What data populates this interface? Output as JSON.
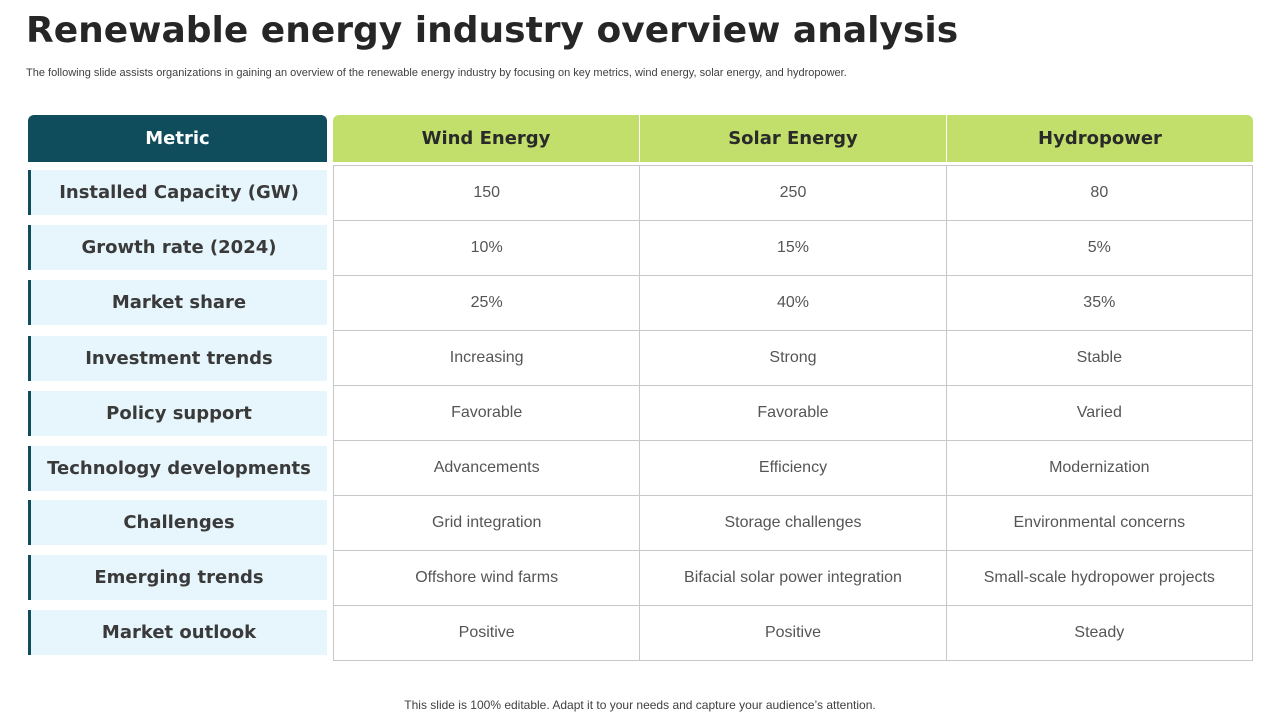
{
  "title": "Renewable energy industry overview analysis",
  "subtitle": "The following slide assists organizations in gaining an overview of the renewable energy industry by focusing on key metrics, wind energy, solar energy, and hydropower.",
  "table": {
    "metric_header": "Metric",
    "columns": [
      "Wind Energy",
      "Solar Energy",
      "Hydropower"
    ],
    "rows": [
      {
        "metric": "Installed Capacity (GW)",
        "values": [
          "150",
          "250",
          "80"
        ]
      },
      {
        "metric": "Growth rate (2024)",
        "values": [
          "10%",
          "15%",
          "5%"
        ]
      },
      {
        "metric": "Market share",
        "values": [
          "25%",
          "40%",
          "35%"
        ]
      },
      {
        "metric": "Investment trends",
        "values": [
          "Increasing",
          "Strong",
          "Stable"
        ]
      },
      {
        "metric": "Policy support",
        "values": [
          "Favorable",
          "Favorable",
          "Varied"
        ]
      },
      {
        "metric": "Technology developments",
        "values": [
          "Advancements",
          "Efficiency",
          "Modernization"
        ]
      },
      {
        "metric": "Challenges",
        "values": [
          "Grid integration",
          "Storage challenges",
          "Environmental  concerns"
        ]
      },
      {
        "metric": "Emerging trends",
        "values": [
          "Offshore  wind farms",
          "Bifacial solar power integration",
          "Small-scale  hydropower projects"
        ]
      },
      {
        "metric": "Market outlook",
        "values": [
          "Positive",
          "Positive",
          "Steady"
        ]
      }
    ]
  },
  "footer": "This slide is 100% editable. Adapt it to your needs and capture your audience’s attention.",
  "colors": {
    "metric_header_bg": "#0f4d5c",
    "metric_row_bg": "#e6f6fc",
    "column_header_bg": "#c1df6a",
    "grid_border": "#c8c8c8"
  }
}
